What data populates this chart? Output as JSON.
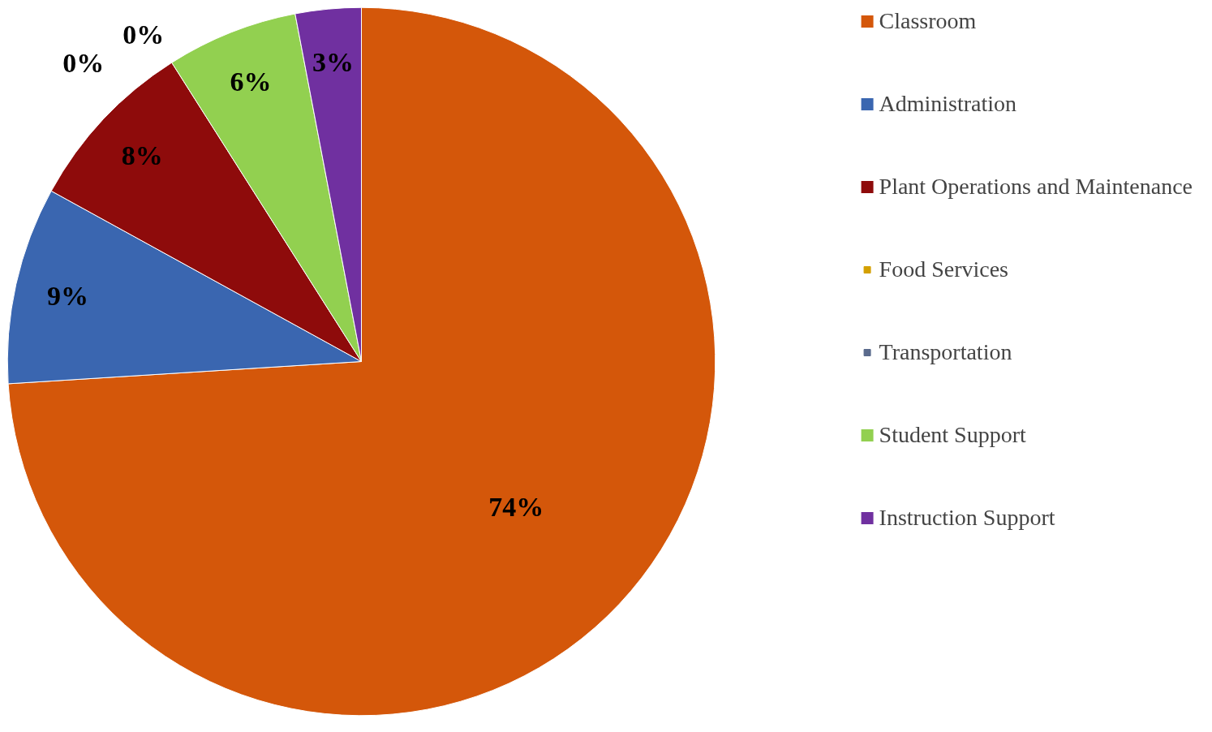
{
  "chart_data": {
    "type": "pie",
    "categories": [
      "Classroom",
      "Administration",
      "Plant Operations and Maintenance",
      "Food Services",
      "Transportation",
      "Student Support",
      "Instruction Support"
    ],
    "values": [
      74,
      9,
      8,
      0,
      0,
      6,
      3
    ],
    "colors": [
      "#d4570a",
      "#3a66b0",
      "#8e0b0b",
      "#d4a000",
      "#5a6a8c",
      "#92d050",
      "#7030a0"
    ],
    "value_labels": [
      "74%",
      "9%",
      "8%",
      "0%",
      "0%",
      "6%",
      "3%"
    ],
    "legend": "right"
  }
}
